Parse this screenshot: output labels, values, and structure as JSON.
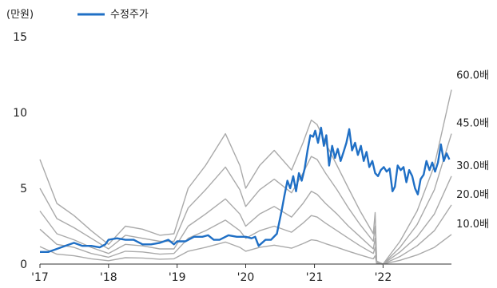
{
  "chart_data": {
    "type": "line",
    "y_unit": "(만원)",
    "ylim": [
      0,
      15
    ],
    "y_ticks": [
      "15",
      "10",
      "5",
      "0"
    ],
    "x_range": [
      "2017-01-01",
      "2022-12-31"
    ],
    "x_ticks": [
      {
        "label": "'17",
        "x": "2017-01-01"
      },
      {
        "label": "'18",
        "x": "2018-01-01"
      },
      {
        "label": "'19",
        "x": "2019-01-01"
      },
      {
        "label": "'20",
        "x": "2020-01-01"
      },
      {
        "label": "'21",
        "x": "2021-01-01"
      },
      {
        "label": "'22",
        "x": "2022-01-01"
      }
    ],
    "legend": {
      "placement": "top-left",
      "entries": [
        {
          "name": "수정주가",
          "color": "#1f6fc5"
        }
      ]
    },
    "grid": false,
    "colors": {
      "price": "#1f6fc5",
      "band": "#aaaaaa",
      "axis": "#333333"
    },
    "series": [
      {
        "name": "수정주가",
        "points": [
          [
            "2017-01-01",
            0.8
          ],
          [
            "2017-02-15",
            0.8
          ],
          [
            "2017-04-01",
            1.0
          ],
          [
            "2017-05-15",
            1.2
          ],
          [
            "2017-07-01",
            1.4
          ],
          [
            "2017-08-15",
            1.2
          ],
          [
            "2017-10-01",
            1.2
          ],
          [
            "2017-11-15",
            1.1
          ],
          [
            "2017-12-15",
            1.3
          ],
          [
            "2018-01-01",
            1.6
          ],
          [
            "2018-02-15",
            1.7
          ],
          [
            "2018-04-01",
            1.6
          ],
          [
            "2018-05-15",
            1.6
          ],
          [
            "2018-07-01",
            1.3
          ],
          [
            "2018-08-15",
            1.3
          ],
          [
            "2018-10-01",
            1.4
          ],
          [
            "2018-11-15",
            1.6
          ],
          [
            "2018-12-15",
            1.3
          ],
          [
            "2019-01-01",
            1.5
          ],
          [
            "2019-02-15",
            1.5
          ],
          [
            "2019-04-01",
            1.8
          ],
          [
            "2019-05-15",
            1.8
          ],
          [
            "2019-06-15",
            1.9
          ],
          [
            "2019-07-15",
            1.6
          ],
          [
            "2019-08-15",
            1.6
          ],
          [
            "2019-10-01",
            1.9
          ],
          [
            "2019-11-15",
            1.8
          ],
          [
            "2019-12-15",
            1.8
          ],
          [
            "2020-01-01",
            1.8
          ],
          [
            "2020-02-01",
            1.7
          ],
          [
            "2020-02-20",
            1.8
          ],
          [
            "2020-03-10",
            1.2
          ],
          [
            "2020-04-15",
            1.6
          ],
          [
            "2020-05-15",
            1.6
          ],
          [
            "2020-06-15",
            2.0
          ],
          [
            "2020-07-10",
            3.5
          ],
          [
            "2020-07-25",
            4.5
          ],
          [
            "2020-08-10",
            5.5
          ],
          [
            "2020-08-25",
            5.0
          ],
          [
            "2020-09-10",
            5.8
          ],
          [
            "2020-09-25",
            4.8
          ],
          [
            "2020-10-10",
            6.0
          ],
          [
            "2020-10-25",
            5.5
          ],
          [
            "2020-11-10",
            6.3
          ],
          [
            "2020-11-25",
            7.5
          ],
          [
            "2020-12-10",
            8.5
          ],
          [
            "2020-12-25",
            8.4
          ],
          [
            "2021-01-05",
            8.8
          ],
          [
            "2021-01-20",
            8.0
          ],
          [
            "2021-02-05",
            9.0
          ],
          [
            "2021-02-20",
            7.8
          ],
          [
            "2021-03-05",
            8.5
          ],
          [
            "2021-03-20",
            6.5
          ],
          [
            "2021-04-05",
            7.8
          ],
          [
            "2021-04-20",
            7.0
          ],
          [
            "2021-05-05",
            7.6
          ],
          [
            "2021-05-20",
            6.8
          ],
          [
            "2021-06-05",
            7.4
          ],
          [
            "2021-06-20",
            8.0
          ],
          [
            "2021-07-05",
            8.9
          ],
          [
            "2021-07-20",
            7.5
          ],
          [
            "2021-08-05",
            8.0
          ],
          [
            "2021-08-20",
            7.2
          ],
          [
            "2021-09-05",
            7.8
          ],
          [
            "2021-09-20",
            6.8
          ],
          [
            "2021-10-05",
            7.4
          ],
          [
            "2021-10-20",
            6.4
          ],
          [
            "2021-11-05",
            6.8
          ],
          [
            "2021-11-20",
            6.0
          ],
          [
            "2021-12-05",
            5.8
          ],
          [
            "2021-12-20",
            6.2
          ],
          [
            "2022-01-05",
            6.4
          ],
          [
            "2022-01-20",
            6.1
          ],
          [
            "2022-02-05",
            6.3
          ],
          [
            "2022-02-20",
            4.8
          ],
          [
            "2022-03-05",
            5.1
          ],
          [
            "2022-03-20",
            6.5
          ],
          [
            "2022-04-05",
            6.2
          ],
          [
            "2022-04-20",
            6.4
          ],
          [
            "2022-05-05",
            5.4
          ],
          [
            "2022-05-20",
            6.2
          ],
          [
            "2022-06-05",
            5.8
          ],
          [
            "2022-06-20",
            5.0
          ],
          [
            "2022-07-05",
            4.6
          ],
          [
            "2022-07-20",
            5.6
          ],
          [
            "2022-08-05",
            5.9
          ],
          [
            "2022-08-20",
            6.8
          ],
          [
            "2022-09-05",
            6.2
          ],
          [
            "2022-09-20",
            6.7
          ],
          [
            "2022-10-05",
            6.1
          ],
          [
            "2022-10-20",
            6.7
          ],
          [
            "2022-11-05",
            7.9
          ],
          [
            "2022-11-20",
            6.8
          ],
          [
            "2022-12-05",
            7.3
          ],
          [
            "2022-12-20",
            6.9
          ]
        ]
      },
      {
        "name": "60.0배",
        "points": [
          [
            "2017-01-01",
            6.9
          ],
          [
            "2017-04-01",
            4.0
          ],
          [
            "2017-07-01",
            3.2
          ],
          [
            "2017-10-01",
            2.2
          ],
          [
            "2018-01-01",
            1.3
          ],
          [
            "2018-04-01",
            2.5
          ],
          [
            "2018-07-01",
            2.3
          ],
          [
            "2018-10-01",
            1.9
          ],
          [
            "2018-12-15",
            2.0
          ],
          [
            "2019-03-01",
            5.0
          ],
          [
            "2019-06-01",
            6.5
          ],
          [
            "2019-09-15",
            8.6
          ],
          [
            "2019-12-01",
            6.5
          ],
          [
            "2020-01-01",
            5.0
          ],
          [
            "2020-03-15",
            6.5
          ],
          [
            "2020-06-01",
            7.5
          ],
          [
            "2020-09-01",
            6.2
          ],
          [
            "2020-11-01",
            8.0
          ],
          [
            "2020-12-15",
            9.5
          ],
          [
            "2021-01-15",
            9.2
          ],
          [
            "2021-03-01",
            8.0
          ],
          [
            "2021-05-01",
            6.5
          ],
          [
            "2021-07-01",
            5.0
          ],
          [
            "2021-09-01",
            3.5
          ],
          [
            "2021-11-10",
            2.0
          ],
          [
            "2021-11-20",
            3.4
          ],
          [
            "2021-11-28",
            0.2
          ],
          [
            "2022-01-01",
            0.0
          ],
          [
            "2022-04-01",
            1.5
          ],
          [
            "2022-07-01",
            3.5
          ],
          [
            "2022-10-01",
            6.5
          ],
          [
            "2022-12-31",
            11.5
          ]
        ]
      },
      {
        "name": "45.0배",
        "points": [
          [
            "2017-01-01",
            5.0
          ],
          [
            "2017-04-01",
            3.0
          ],
          [
            "2017-07-01",
            2.4
          ],
          [
            "2017-10-01",
            1.7
          ],
          [
            "2018-01-01",
            1.0
          ],
          [
            "2018-04-01",
            1.9
          ],
          [
            "2018-07-01",
            1.7
          ],
          [
            "2018-10-01",
            1.5
          ],
          [
            "2018-12-15",
            1.5
          ],
          [
            "2019-03-01",
            3.7
          ],
          [
            "2019-06-01",
            4.9
          ],
          [
            "2019-09-15",
            6.4
          ],
          [
            "2019-12-01",
            4.9
          ],
          [
            "2020-01-01",
            3.8
          ],
          [
            "2020-03-15",
            4.9
          ],
          [
            "2020-06-01",
            5.6
          ],
          [
            "2020-09-01",
            4.7
          ],
          [
            "2020-11-01",
            6.0
          ],
          [
            "2020-12-15",
            7.1
          ],
          [
            "2021-01-15",
            6.9
          ],
          [
            "2021-03-01",
            6.0
          ],
          [
            "2021-05-01",
            4.9
          ],
          [
            "2021-07-01",
            3.7
          ],
          [
            "2021-09-01",
            2.6
          ],
          [
            "2021-11-10",
            1.5
          ],
          [
            "2021-11-20",
            2.5
          ],
          [
            "2021-11-28",
            0.15
          ],
          [
            "2022-01-01",
            0.0
          ],
          [
            "2022-04-01",
            1.1
          ],
          [
            "2022-07-01",
            2.6
          ],
          [
            "2022-10-01",
            4.9
          ],
          [
            "2022-12-31",
            8.6
          ]
        ]
      },
      {
        "name": "30.0배",
        "points": [
          [
            "2017-01-01",
            3.5
          ],
          [
            "2017-04-01",
            2.0
          ],
          [
            "2017-07-01",
            1.6
          ],
          [
            "2017-10-01",
            1.1
          ],
          [
            "2018-01-01",
            0.7
          ],
          [
            "2018-04-01",
            1.3
          ],
          [
            "2018-07-01",
            1.2
          ],
          [
            "2018-10-01",
            1.0
          ],
          [
            "2018-12-15",
            1.0
          ],
          [
            "2019-03-01",
            2.5
          ],
          [
            "2019-06-01",
            3.3
          ],
          [
            "2019-09-15",
            4.3
          ],
          [
            "2019-12-01",
            3.3
          ],
          [
            "2020-01-01",
            2.5
          ],
          [
            "2020-03-15",
            3.3
          ],
          [
            "2020-06-01",
            3.8
          ],
          [
            "2020-09-01",
            3.1
          ],
          [
            "2020-11-01",
            4.0
          ],
          [
            "2020-12-15",
            4.8
          ],
          [
            "2021-01-15",
            4.6
          ],
          [
            "2021-03-01",
            4.0
          ],
          [
            "2021-05-01",
            3.3
          ],
          [
            "2021-07-01",
            2.5
          ],
          [
            "2021-09-01",
            1.8
          ],
          [
            "2021-11-10",
            1.0
          ],
          [
            "2021-11-20",
            1.7
          ],
          [
            "2021-11-28",
            0.1
          ],
          [
            "2022-01-01",
            0.0
          ],
          [
            "2022-04-01",
            0.8
          ],
          [
            "2022-07-01",
            1.8
          ],
          [
            "2022-10-01",
            3.3
          ],
          [
            "2022-12-31",
            5.8
          ]
        ]
      },
      {
        "name": "20.0배",
        "points": [
          [
            "2017-01-01",
            2.3
          ],
          [
            "2017-04-01",
            1.3
          ],
          [
            "2017-07-01",
            1.1
          ],
          [
            "2017-10-01",
            0.7
          ],
          [
            "2018-01-01",
            0.45
          ],
          [
            "2018-04-01",
            0.85
          ],
          [
            "2018-07-01",
            0.8
          ],
          [
            "2018-10-01",
            0.65
          ],
          [
            "2018-12-15",
            0.7
          ],
          [
            "2019-03-01",
            1.7
          ],
          [
            "2019-06-01",
            2.2
          ],
          [
            "2019-09-15",
            2.9
          ],
          [
            "2019-12-01",
            2.2
          ],
          [
            "2020-01-01",
            1.7
          ],
          [
            "2020-03-15",
            2.2
          ],
          [
            "2020-06-01",
            2.5
          ],
          [
            "2020-09-01",
            2.1
          ],
          [
            "2020-11-01",
            2.7
          ],
          [
            "2020-12-15",
            3.2
          ],
          [
            "2021-01-15",
            3.1
          ],
          [
            "2021-03-01",
            2.7
          ],
          [
            "2021-05-01",
            2.2
          ],
          [
            "2021-07-01",
            1.7
          ],
          [
            "2021-09-01",
            1.2
          ],
          [
            "2021-11-10",
            0.7
          ],
          [
            "2021-11-20",
            1.1
          ],
          [
            "2021-11-28",
            0.07
          ],
          [
            "2022-01-01",
            0.0
          ],
          [
            "2022-04-01",
            0.5
          ],
          [
            "2022-07-01",
            1.2
          ],
          [
            "2022-10-01",
            2.2
          ],
          [
            "2022-12-31",
            3.9
          ]
        ]
      },
      {
        "name": "10.0배",
        "points": [
          [
            "2017-01-01",
            1.15
          ],
          [
            "2017-04-01",
            0.65
          ],
          [
            "2017-07-01",
            0.55
          ],
          [
            "2017-10-01",
            0.35
          ],
          [
            "2018-01-01",
            0.22
          ],
          [
            "2018-04-01",
            0.42
          ],
          [
            "2018-07-01",
            0.4
          ],
          [
            "2018-10-01",
            0.32
          ],
          [
            "2018-12-15",
            0.35
          ],
          [
            "2019-03-01",
            0.85
          ],
          [
            "2019-06-01",
            1.1
          ],
          [
            "2019-09-15",
            1.45
          ],
          [
            "2019-12-01",
            1.1
          ],
          [
            "2020-01-01",
            0.85
          ],
          [
            "2020-03-15",
            1.1
          ],
          [
            "2020-06-01",
            1.25
          ],
          [
            "2020-09-01",
            1.05
          ],
          [
            "2020-11-01",
            1.35
          ],
          [
            "2020-12-15",
            1.6
          ],
          [
            "2021-01-15",
            1.55
          ],
          [
            "2021-03-01",
            1.35
          ],
          [
            "2021-05-01",
            1.1
          ],
          [
            "2021-07-01",
            0.85
          ],
          [
            "2021-09-01",
            0.6
          ],
          [
            "2021-11-10",
            0.35
          ],
          [
            "2021-11-20",
            0.55
          ],
          [
            "2021-11-28",
            0.03
          ],
          [
            "2022-01-01",
            0.0
          ],
          [
            "2022-04-01",
            0.25
          ],
          [
            "2022-07-01",
            0.6
          ],
          [
            "2022-10-01",
            1.1
          ],
          [
            "2022-12-31",
            1.95
          ]
        ]
      }
    ]
  }
}
